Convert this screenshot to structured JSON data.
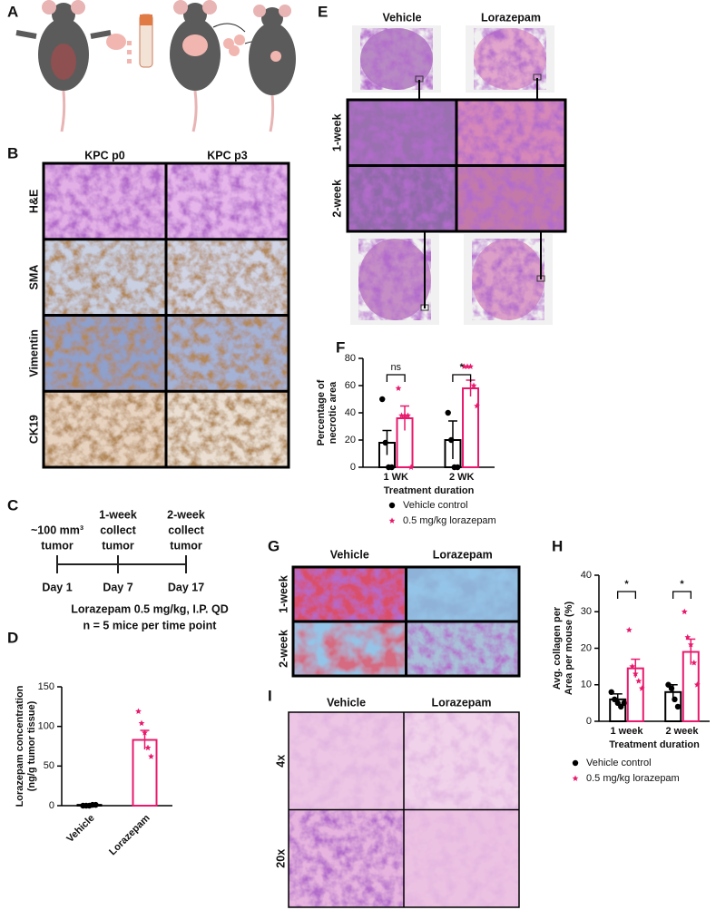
{
  "figure": {
    "panel_labels": [
      "A",
      "B",
      "C",
      "D",
      "E",
      "F",
      "G",
      "H",
      "I"
    ],
    "B": {
      "columns": [
        "KPC p0",
        "KPC p3"
      ],
      "rows": [
        "H&E",
        "SMA",
        "Vimentin",
        "CK19"
      ]
    },
    "C": {
      "events": [
        {
          "lines": [
            "~100 mm³",
            "tumor"
          ],
          "day": "Day 1"
        },
        {
          "lines": [
            "1-week",
            "collect",
            "tumor"
          ],
          "day": "Day 7"
        },
        {
          "lines": [
            "2-week",
            "collect",
            "tumor"
          ],
          "day": "Day 17"
        }
      ],
      "notes": [
        "Lorazepam 0.5 mg/kg, I.P. QD",
        "n = 5 mice per time point"
      ]
    },
    "E": {
      "columns": [
        "Vehicle",
        "Lorazepam"
      ],
      "rows": [
        "1-week",
        "2-week"
      ]
    },
    "G": {
      "columns": [
        "Vehicle",
        "Lorazepam"
      ],
      "rows": [
        "1-week",
        "2-week"
      ]
    },
    "I": {
      "columns": [
        "Vehicle",
        "Lorazepam"
      ],
      "rows": [
        "4x",
        "20x"
      ]
    }
  },
  "chart_data": [
    {
      "type": "bar",
      "ylabel": [
        "Lorazepam concentration",
        "(ng/g tumor tissue)"
      ],
      "categories": [
        "Vehicle",
        "Lorazepam"
      ],
      "colors": [
        "#000000",
        "#e8196c"
      ],
      "markers": [
        "circle",
        "star"
      ],
      "values": [
        1,
        83
      ],
      "errors": [
        0.5,
        12
      ],
      "points": [
        [
          0,
          0,
          0,
          1,
          1
        ],
        [
          119,
          104,
          92,
          73,
          62
        ]
      ],
      "ylim": [
        0,
        150
      ],
      "yticks": [
        0,
        50,
        100,
        150
      ]
    },
    {
      "type": "bar",
      "ylabel": [
        "Percentage of",
        "necrotic area"
      ],
      "xlabel": "Treatment duration",
      "categories": [
        "1 WK",
        "2 WK"
      ],
      "series": [
        {
          "name": "Vehicle control",
          "color": "#000000",
          "marker": "circle",
          "values": [
            18,
            20
          ],
          "errors": [
            9,
            14
          ],
          "points": [
            [
              50,
              18,
              0,
              0
            ],
            [
              40,
              20,
              0,
              0
            ]
          ]
        },
        {
          "name": "0.5 mg/kg lorazepam",
          "color": "#e8196c",
          "marker": "star",
          "values": [
            36,
            58
          ],
          "errors": [
            9,
            6
          ],
          "points": [
            [
              58,
              38,
              38,
              38,
              0
            ],
            [
              74,
              74,
              74,
              60,
              45
            ]
          ]
        }
      ],
      "significance": [
        "ns",
        "*"
      ],
      "ylim": [
        0,
        80
      ],
      "yticks": [
        0,
        20,
        40,
        60,
        80
      ]
    },
    {
      "type": "bar",
      "ylabel": [
        "Avg. collagen per",
        "Area per mouse (%)"
      ],
      "xlabel": "Treatment duration",
      "categories": [
        "1 week",
        "2 week"
      ],
      "series": [
        {
          "name": "Vehicle control",
          "color": "#000000",
          "marker": "circle",
          "values": [
            6,
            8
          ],
          "errors": [
            1.5,
            2
          ],
          "points": [
            [
              8,
              6,
              5,
              4,
              5
            ],
            [
              10,
              9,
              6,
              4
            ]
          ]
        },
        {
          "name": "0.5 mg/kg lorazepam",
          "color": "#e8196c",
          "marker": "star",
          "values": [
            14.5,
            19
          ],
          "errors": [
            2.5,
            3.5
          ],
          "points": [
            [
              25,
              15,
              13,
              11,
              9
            ],
            [
              30,
              23,
              21,
              16,
              10
            ]
          ]
        }
      ],
      "significance": [
        "*",
        "*"
      ],
      "ylim": [
        0,
        40
      ],
      "yticks": [
        0,
        10,
        20,
        30,
        40
      ]
    }
  ]
}
